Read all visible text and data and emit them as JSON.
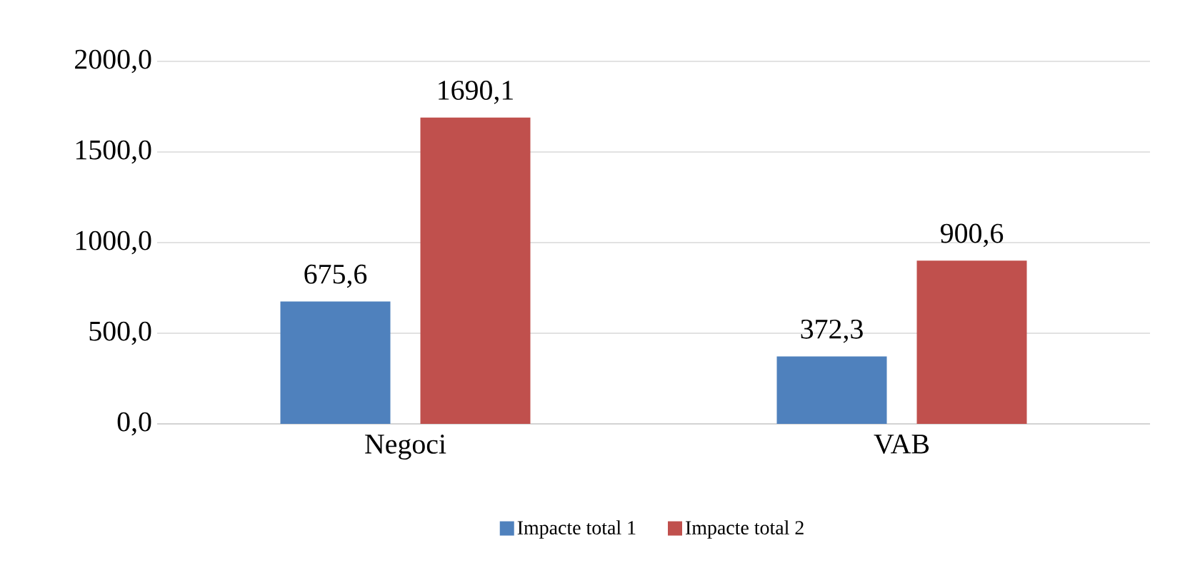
{
  "chart_data": {
    "type": "bar",
    "categories": [
      "Negoci",
      "VAB"
    ],
    "series": [
      {
        "name": "Impacte total 1",
        "color": "#4f81bd",
        "values": [
          675.6,
          372.3
        ],
        "value_labels": [
          "675,6",
          "372,3"
        ]
      },
      {
        "name": "Impacte total 2",
        "color": "#c0504d",
        "values": [
          1690.1,
          900.6
        ],
        "value_labels": [
          "1690,1",
          "900,6"
        ]
      }
    ],
    "ylim": [
      0,
      2000
    ],
    "yticks": [
      {
        "value": 0,
        "label": "0,0"
      },
      {
        "value": 500,
        "label": "500,0"
      },
      {
        "value": 1000,
        "label": "1000,0"
      },
      {
        "value": 1500,
        "label": "1500,0"
      },
      {
        "value": 2000,
        "label": "2000,0"
      }
    ],
    "grid": "y",
    "legend": "bottom"
  }
}
